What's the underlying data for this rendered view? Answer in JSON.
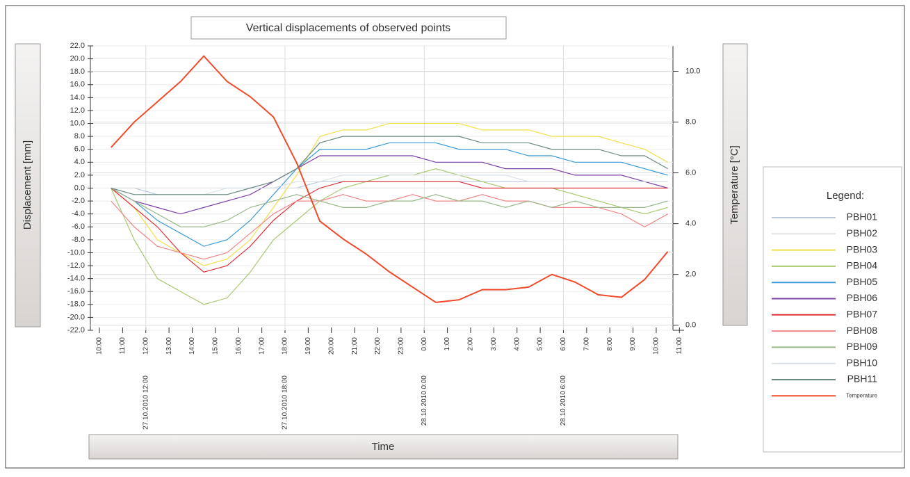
{
  "chart_data": {
    "type": "line",
    "title": "Vertical displacements of observed points",
    "xlabel": "Time",
    "ylabel": "Displacement [mm]",
    "y2label": "Temperature [°C]",
    "legend_title": "Legend:",
    "legend": "right",
    "grid": true,
    "xlim": [
      9.7,
      35.2
    ],
    "ylim": [
      -22,
      22
    ],
    "y2lim": [
      -0.2,
      11
    ],
    "xticks": [
      {
        "value": 10,
        "label": "10:00"
      },
      {
        "value": 11,
        "label": "11:00"
      },
      {
        "value": 12,
        "label": "12:00"
      },
      {
        "value": 13,
        "label": "13:00"
      },
      {
        "value": 14,
        "label": "14:00"
      },
      {
        "value": 15,
        "label": "15:00"
      },
      {
        "value": 16,
        "label": "16:00"
      },
      {
        "value": 17,
        "label": "17:00"
      },
      {
        "value": 18,
        "label": "18:00"
      },
      {
        "value": 19,
        "label": "19:00"
      },
      {
        "value": 20,
        "label": "20:00"
      },
      {
        "value": 21,
        "label": "21:00"
      },
      {
        "value": 22,
        "label": "22:00"
      },
      {
        "value": 23,
        "label": "23:00"
      },
      {
        "value": 24,
        "label": "0:00"
      },
      {
        "value": 25,
        "label": "1:00"
      },
      {
        "value": 26,
        "label": "2:00"
      },
      {
        "value": 27,
        "label": "3:00"
      },
      {
        "value": 28,
        "label": "4:00"
      },
      {
        "value": 29,
        "label": "5:00"
      },
      {
        "value": 30,
        "label": "6:00"
      },
      {
        "value": 31,
        "label": "7:00"
      },
      {
        "value": 32,
        "label": "8:00"
      },
      {
        "value": 33,
        "label": "9:00"
      },
      {
        "value": 34,
        "label": "10:00"
      },
      {
        "value": 35,
        "label": "11:00"
      }
    ],
    "date_labels": [
      {
        "value": 12,
        "label": "27.10.2010 12:00"
      },
      {
        "value": 18,
        "label": "27.10.2010 18:00"
      },
      {
        "value": 24,
        "label": "28.10.2010 0:00"
      },
      {
        "value": 30,
        "label": "28.10.2010 6:00"
      }
    ],
    "yticks": [
      {
        "value": 22,
        "label": "22.0"
      },
      {
        "value": 20,
        "label": "20.0"
      },
      {
        "value": 18,
        "label": "18.0"
      },
      {
        "value": 16,
        "label": "16.0"
      },
      {
        "value": 14,
        "label": "14.0"
      },
      {
        "value": 12,
        "label": "12.0"
      },
      {
        "value": 10,
        "label": "10.0"
      },
      {
        "value": 8,
        "label": "8.0"
      },
      {
        "value": 6,
        "label": "6.0"
      },
      {
        "value": 4,
        "label": "4.0"
      },
      {
        "value": 2,
        "label": "2.0"
      },
      {
        "value": 0,
        "label": "0.0"
      },
      {
        "value": -2,
        "label": "-2.0"
      },
      {
        "value": -4,
        "label": "-4.0"
      },
      {
        "value": -6,
        "label": "-6.0"
      },
      {
        "value": -8,
        "label": "-8.0"
      },
      {
        "value": -10,
        "label": "-10.0"
      },
      {
        "value": -12,
        "label": "-12.0"
      },
      {
        "value": -14,
        "label": "-14.0"
      },
      {
        "value": -16,
        "label": "-16.0"
      },
      {
        "value": -18,
        "label": "-18.0"
      },
      {
        "value": -20,
        "label": "-20.0"
      },
      {
        "value": -22,
        "label": "-22.0"
      }
    ],
    "y2ticks": [
      {
        "value": 0,
        "label": "0.0"
      },
      {
        "value": 2,
        "label": "2.0"
      },
      {
        "value": 4,
        "label": "4.0"
      },
      {
        "value": 6,
        "label": "6.0"
      },
      {
        "value": 8,
        "label": "8.0"
      },
      {
        "value": 10,
        "label": "10.0"
      }
    ],
    "x": [
      10.5,
      11.5,
      12.5,
      13.5,
      14.5,
      15.5,
      16.5,
      17.5,
      18.5,
      19.5,
      20.5,
      21.5,
      22.5,
      23.5,
      24.5,
      25.5,
      26.5,
      27.5,
      28.5,
      29.5,
      30.5,
      31.5,
      32.5,
      33.5,
      34.5
    ],
    "series": [
      {
        "name": "PBH01",
        "color": "#b8c8d8",
        "values": [
          0,
          0,
          -1,
          -1,
          -1,
          -1,
          0,
          0,
          0,
          1,
          1,
          1,
          1,
          1,
          1,
          1,
          1,
          1,
          1,
          1,
          1,
          1,
          1,
          1,
          1
        ]
      },
      {
        "name": "PBH02",
        "color": "#e4e4e4",
        "values": [
          0,
          0,
          0,
          0,
          0,
          0,
          0,
          0,
          0,
          0,
          0,
          0,
          0,
          0,
          0,
          0,
          0,
          0,
          0,
          0,
          0,
          0,
          0,
          0,
          0
        ]
      },
      {
        "name": "PBH03",
        "color": "#f2e04a",
        "values": [
          0,
          -3,
          -8,
          -10,
          -12,
          -11,
          -8,
          -3,
          2,
          8,
          9,
          9,
          10,
          10,
          10,
          10,
          9,
          9,
          9,
          8,
          8,
          8,
          7,
          6,
          4
        ]
      },
      {
        "name": "PBH04",
        "color": "#a8c870",
        "values": [
          0,
          -8,
          -14,
          -16,
          -18,
          -17,
          -13,
          -8,
          -5,
          -2,
          0,
          1,
          2,
          2,
          3,
          2,
          1,
          0,
          0,
          0,
          -1,
          -2,
          -3,
          -4,
          -3
        ]
      },
      {
        "name": "PBH05",
        "color": "#3a9ad8",
        "values": [
          0,
          -2,
          -5,
          -7,
          -9,
          -8,
          -5,
          -1,
          3,
          6,
          6,
          6,
          7,
          7,
          7,
          6,
          6,
          6,
          5,
          5,
          4,
          4,
          4,
          3,
          2
        ]
      },
      {
        "name": "PBH06",
        "color": "#7b3fa8",
        "values": [
          0,
          -2,
          -3,
          -4,
          -3,
          -2,
          -1,
          1,
          3,
          5,
          5,
          5,
          5,
          5,
          4,
          4,
          4,
          3,
          3,
          3,
          2,
          2,
          2,
          1,
          0
        ]
      },
      {
        "name": "PBH07",
        "color": "#e0303a",
        "values": [
          0,
          -3,
          -6,
          -10,
          -13,
          -12,
          -9,
          -5,
          -2,
          0,
          1,
          1,
          1,
          1,
          1,
          1,
          0,
          0,
          0,
          0,
          0,
          0,
          0,
          0,
          0
        ]
      },
      {
        "name": "PBH08",
        "color": "#f08888",
        "values": [
          -2,
          -6,
          -9,
          -10,
          -11,
          -10,
          -7,
          -4,
          -2,
          -2,
          -1,
          -2,
          -2,
          -1,
          -2,
          -2,
          -1,
          -2,
          -2,
          -3,
          -3,
          -3,
          -4,
          -6,
          -4
        ]
      },
      {
        "name": "PBH09",
        "color": "#98b888",
        "values": [
          0,
          -2,
          -4,
          -6,
          -6,
          -5,
          -3,
          -2,
          -1,
          -2,
          -3,
          -3,
          -2,
          -2,
          -1,
          -2,
          -2,
          -3,
          -2,
          -3,
          -2,
          -3,
          -3,
          -3,
          -2
        ]
      },
      {
        "name": "PBH10",
        "color": "#d8e0e8",
        "values": [
          0,
          -1,
          -1,
          -1,
          -1,
          0,
          0,
          0,
          1,
          1,
          2,
          2,
          2,
          2,
          2,
          2,
          2,
          2,
          1,
          1,
          1,
          1,
          1,
          1,
          1
        ]
      },
      {
        "name": "PBH11",
        "color": "#6a8a80",
        "values": [
          0,
          -1,
          -1,
          -1,
          -1,
          -1,
          0,
          1,
          3,
          7,
          8,
          8,
          8,
          8,
          8,
          8,
          7,
          7,
          7,
          6,
          6,
          6,
          5,
          5,
          3
        ]
      },
      {
        "name": "Temperature",
        "color": "#f04a2a",
        "axis": "y2",
        "values": [
          7.0,
          8.0,
          8.8,
          9.6,
          10.6,
          9.6,
          9.0,
          8.2,
          6.4,
          4.1,
          3.4,
          2.8,
          2.1,
          1.5,
          0.9,
          1.0,
          1.4,
          1.4,
          1.5,
          2.0,
          1.7,
          1.2,
          1.1,
          1.8,
          2.9
        ]
      }
    ]
  }
}
